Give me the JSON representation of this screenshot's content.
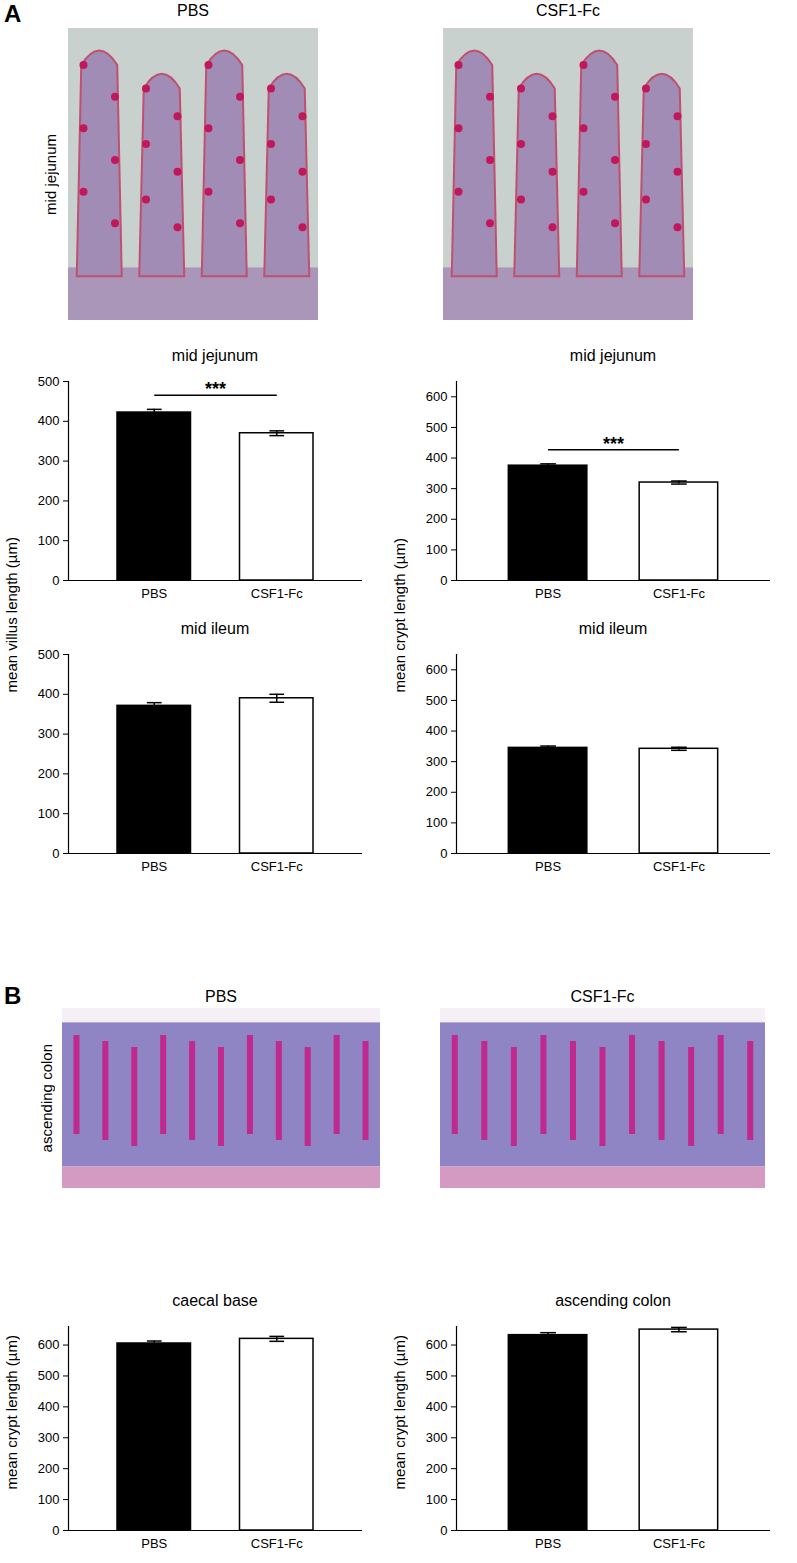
{
  "panels": [
    {
      "label": "A",
      "image_titles": [
        "PBS",
        "CSF1-Fc"
      ],
      "image_label": "mid jejunum",
      "axis_labels": [
        "mean villus length (µm)",
        "mean crypt length (µm)"
      ]
    },
    {
      "label": "B",
      "image_titles": [
        "PBS",
        "CSF1-Fc"
      ],
      "image_label": "ascending colon",
      "axis_labels": [
        "mean crypt length (µm)",
        "mean crypt length (µm)"
      ]
    }
  ],
  "chart_data": [
    {
      "type": "bar",
      "title": "mid jejunum",
      "categories": [
        "PBS",
        "CSF1-Fc"
      ],
      "values": [
        422,
        370
      ],
      "errors": [
        8,
        6
      ],
      "colors": [
        "#000000",
        "#ffffff"
      ],
      "ylim": [
        0,
        500
      ],
      "yticks": [
        0,
        100,
        200,
        300,
        400,
        500
      ],
      "annotation": "***"
    },
    {
      "type": "bar",
      "title": "mid jejunum",
      "categories": [
        "PBS",
        "CSF1-Fc"
      ],
      "values": [
        375,
        320
      ],
      "errors": [
        6,
        5
      ],
      "colors": [
        "#000000",
        "#ffffff"
      ],
      "ylim": [
        0,
        650
      ],
      "yticks": [
        0,
        100,
        200,
        300,
        400,
        500,
        600
      ],
      "annotation": "***"
    },
    {
      "type": "bar",
      "title": "mid ileum",
      "categories": [
        "PBS",
        "CSF1-Fc"
      ],
      "values": [
        371,
        390
      ],
      "errors": [
        8,
        10
      ],
      "colors": [
        "#000000",
        "#ffffff"
      ],
      "ylim": [
        0,
        500
      ],
      "yticks": [
        0,
        100,
        200,
        300,
        400,
        500
      ]
    },
    {
      "type": "bar",
      "title": "mid ileum",
      "categories": [
        "PBS",
        "CSF1-Fc"
      ],
      "values": [
        345,
        342
      ],
      "errors": [
        6,
        5
      ],
      "colors": [
        "#000000",
        "#ffffff"
      ],
      "ylim": [
        0,
        650
      ],
      "yticks": [
        0,
        100,
        200,
        300,
        400,
        500,
        600
      ]
    },
    {
      "type": "bar",
      "title": "caecal base",
      "categories": [
        "PBS",
        "CSF1-Fc"
      ],
      "values": [
        605,
        620
      ],
      "errors": [
        8,
        8
      ],
      "colors": [
        "#000000",
        "#ffffff"
      ],
      "ylim": [
        0,
        660
      ],
      "yticks": [
        0,
        100,
        200,
        300,
        400,
        500,
        600
      ]
    },
    {
      "type": "bar",
      "title": "ascending colon",
      "categories": [
        "PBS",
        "CSF1-Fc"
      ],
      "values": [
        632,
        650
      ],
      "errors": [
        8,
        7
      ],
      "colors": [
        "#000000",
        "#ffffff"
      ],
      "ylim": [
        0,
        660
      ],
      "yticks": [
        0,
        100,
        200,
        300,
        400,
        500,
        600
      ]
    }
  ]
}
